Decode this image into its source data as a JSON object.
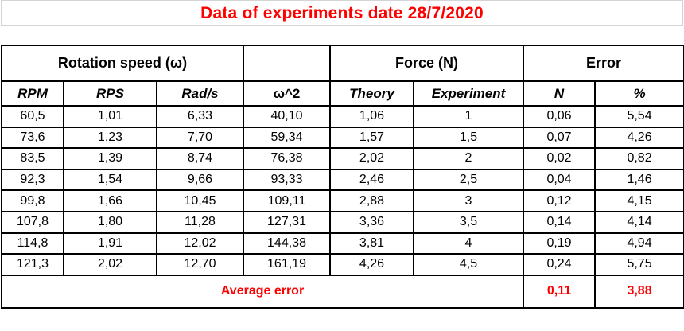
{
  "title": "Data of experiments date 28/7/2020",
  "colors": {
    "accent_red": "#FF0000",
    "text_black": "#000000",
    "title_gridline_gray": "#D4D4D4",
    "table_border_black": "#000000"
  },
  "table": {
    "group_headers": [
      {
        "label": "Rotation speed (ω)",
        "span": 3
      },
      {
        "label": "",
        "span": 1
      },
      {
        "label": "Force (N)",
        "span": 2
      },
      {
        "label": "Error",
        "span": 2
      }
    ],
    "column_headers": [
      "RPM",
      "RPS",
      "Rad/s",
      "ω^2",
      "Theory",
      "Experiment",
      "N",
      "%"
    ],
    "rows": [
      [
        "60,5",
        "1,01",
        "6,33",
        "40,10",
        "1,06",
        "1",
        "0,06",
        "5,54"
      ],
      [
        "73,6",
        "1,23",
        "7,70",
        "59,34",
        "1,57",
        "1,5",
        "0,07",
        "4,26"
      ],
      [
        "83,5",
        "1,39",
        "8,74",
        "76,38",
        "2,02",
        "2",
        "0,02",
        "0,82"
      ],
      [
        "92,3",
        "1,54",
        "9,66",
        "93,33",
        "2,46",
        "2,5",
        "0,04",
        "1,46"
      ],
      [
        "99,8",
        "1,66",
        "10,45",
        "109,11",
        "2,88",
        "3",
        "0,12",
        "4,15"
      ],
      [
        "107,8",
        "1,80",
        "11,28",
        "127,31",
        "3,36",
        "3,5",
        "0,14",
        "4,14"
      ],
      [
        "114,8",
        "1,91",
        "12,02",
        "144,38",
        "3,81",
        "4",
        "0,19",
        "4,94"
      ],
      [
        "121,3",
        "2,02",
        "12,70",
        "161,19",
        "4,26",
        "4,5",
        "0,24",
        "5,75"
      ]
    ],
    "footer": {
      "label": "Average error",
      "values": [
        "0,11",
        "3,88"
      ]
    }
  }
}
